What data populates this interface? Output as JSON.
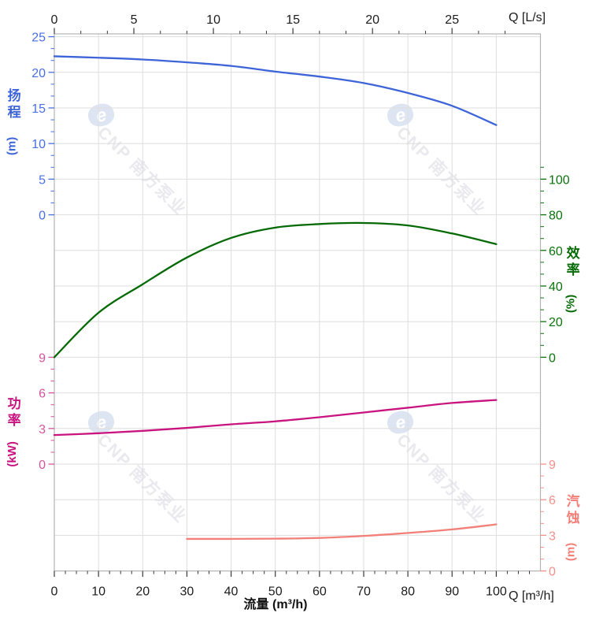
{
  "watermark": {
    "logo_glyph": "e",
    "text": "CNP 南方泵业"
  },
  "chart_data": {
    "type": "line",
    "title": "",
    "grid": true,
    "x_bottom": {
      "label": "流量 (m³/h)",
      "corner_label": "Q [m³/h]",
      "ticks": [
        0,
        10,
        20,
        30,
        40,
        50,
        60,
        70,
        80,
        90,
        100
      ],
      "minor_step": 2.5,
      "range": [
        0,
        110
      ]
    },
    "x_top": {
      "corner_label": "Q [L/s]",
      "ticks": [
        0,
        5,
        10,
        15,
        20,
        25
      ],
      "minor_step": 1.6667,
      "range": [
        0,
        30.55
      ]
    },
    "y_axes": {
      "head": {
        "title": "扬程",
        "unit": "(m)",
        "color": "#3e64d9",
        "label_color": "#4a6fe0",
        "ticks": [
          0,
          5,
          10,
          15,
          20,
          25
        ],
        "minor_step": 1.6667,
        "range": [
          0,
          25
        ]
      },
      "power": {
        "title": "功率",
        "unit": "(kW)",
        "color": "#c9137f",
        "label_color": "#d4549b",
        "ticks": [
          0,
          3,
          6,
          9
        ],
        "minor_step": 1,
        "range": [
          0,
          9
        ]
      },
      "eff": {
        "title": "效率",
        "unit": "(%)",
        "color": "#056a05",
        "label_color": "#0b730b",
        "ticks": [
          0,
          20,
          40,
          60,
          80,
          100
        ],
        "minor_step": 6.6667,
        "range": [
          0,
          100
        ]
      },
      "npsh": {
        "title": "汽蚀",
        "unit": "(m)",
        "color": "#f27f78",
        "label_color": "#f5908a",
        "ticks": [
          0,
          3,
          6,
          9
        ],
        "minor_step": 1,
        "range": [
          0,
          9
        ]
      }
    },
    "series": [
      {
        "id": "head",
        "name": "扬程 H (m)",
        "axis": "head",
        "x": [
          0,
          10,
          20,
          30,
          40,
          50,
          60,
          70,
          80,
          90,
          100
        ],
        "y": [
          22.25,
          22.05,
          21.8,
          21.4,
          20.9,
          20.1,
          19.4,
          18.5,
          17.1,
          15.3,
          12.6
        ]
      },
      {
        "id": "eff",
        "name": "效率 η (%)",
        "axis": "eff",
        "x": [
          0,
          10,
          20,
          30,
          40,
          50,
          60,
          70,
          80,
          90,
          100
        ],
        "y": [
          0,
          25,
          41,
          56,
          67,
          72.8,
          74.8,
          75.4,
          74,
          69.5,
          63.5
        ]
      },
      {
        "id": "power",
        "name": "功率 P (kW)",
        "axis": "power",
        "x": [
          0,
          10,
          20,
          30,
          40,
          50,
          60,
          70,
          80,
          90,
          100
        ],
        "y": [
          2.45,
          2.6,
          2.8,
          3.05,
          3.35,
          3.6,
          3.95,
          4.35,
          4.75,
          5.15,
          5.4
        ]
      },
      {
        "id": "npsh",
        "name": "汽蚀 NPSH (m)",
        "axis": "npsh",
        "x": [
          30,
          40,
          50,
          60,
          70,
          80,
          90,
          100
        ],
        "y": [
          2.7,
          2.7,
          2.72,
          2.78,
          2.95,
          3.2,
          3.5,
          3.92
        ]
      }
    ]
  }
}
